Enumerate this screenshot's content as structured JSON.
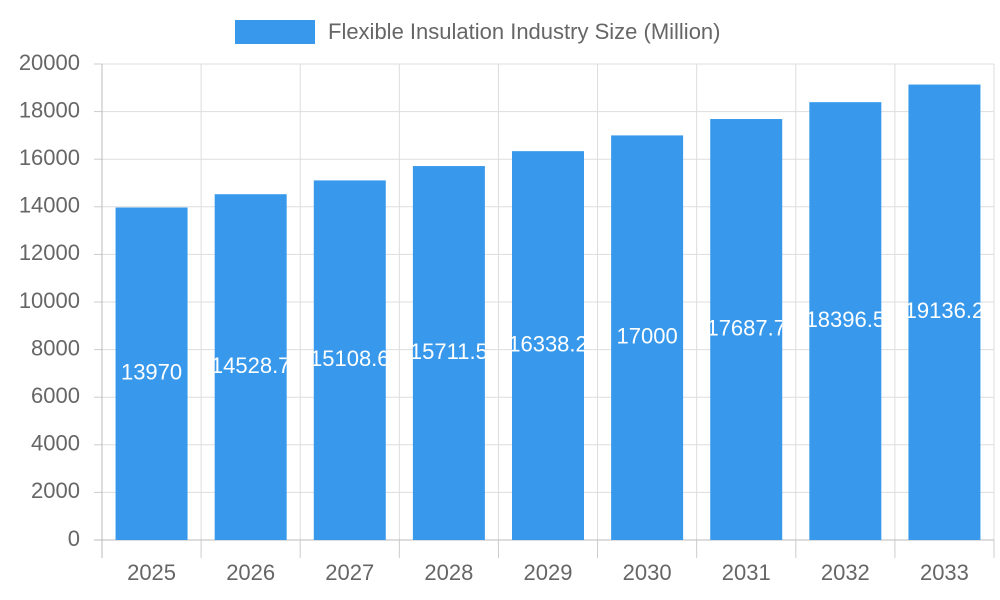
{
  "chart_data": {
    "type": "bar",
    "categories": [
      "2025",
      "2026",
      "2027",
      "2028",
      "2029",
      "2030",
      "2031",
      "2032",
      "2033"
    ],
    "series": [
      {
        "name": "Flexible Insulation Industry Size (Million)",
        "color": "#3899ec",
        "values": [
          13970,
          14528.7,
          15108.6,
          15711.5,
          16338.2,
          17000,
          17687.7,
          18396.5,
          19136.2
        ]
      }
    ],
    "ylim": [
      0,
      20000
    ],
    "yticks": [
      0,
      2000,
      4000,
      6000,
      8000,
      10000,
      12000,
      14000,
      16000,
      18000,
      20000
    ],
    "grid": true,
    "legend": "top"
  }
}
